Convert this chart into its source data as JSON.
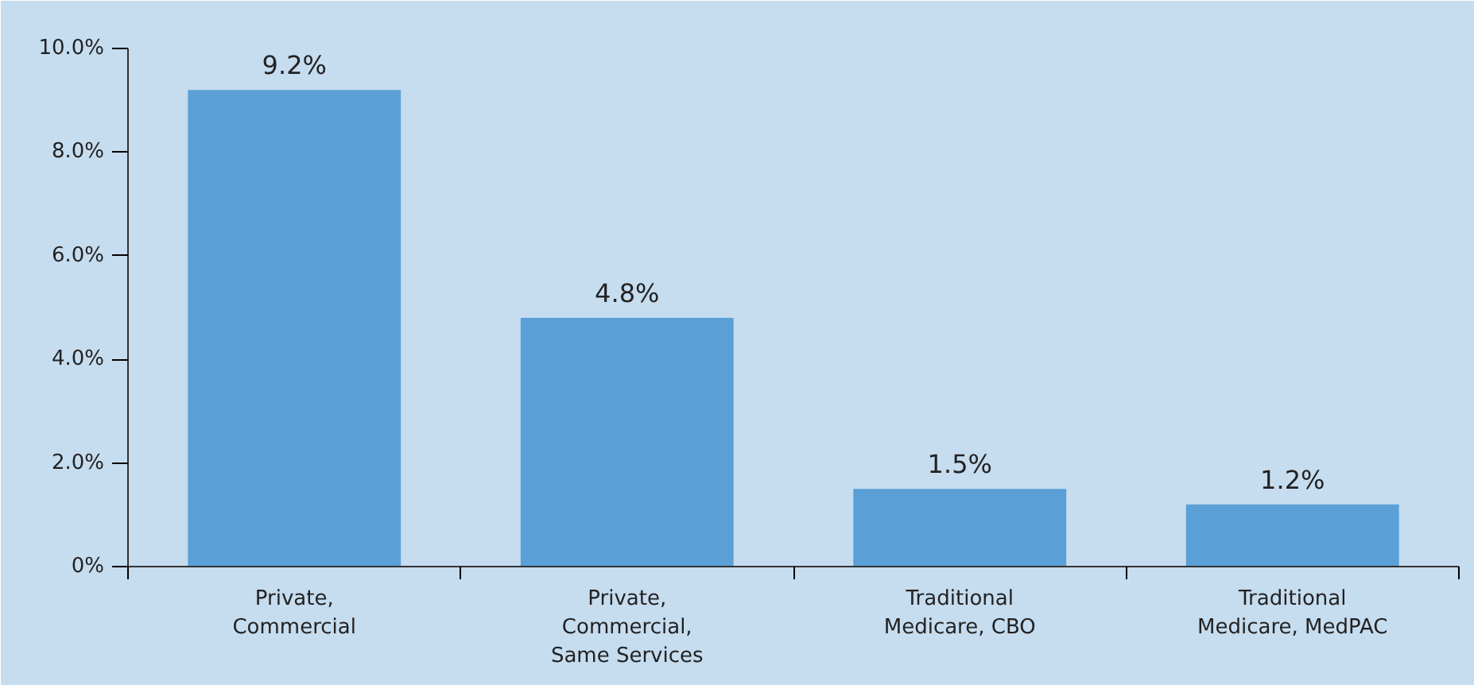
{
  "chart_data": {
    "type": "bar",
    "categories": [
      "Private,\nCommercial",
      "Private,\nCommercial,\nSame Services",
      "Traditional\nMedicare, CBO",
      "Traditional\nMedicare, MedPAC"
    ],
    "values": [
      9.2,
      4.8,
      1.5,
      1.2
    ],
    "value_labels": [
      "9.2%",
      "4.8%",
      "1.5%",
      "1.2%"
    ],
    "color": "#5aa0d6",
    "ylim": [
      0,
      10
    ],
    "yticks": [
      {
        "value": 0,
        "label": "0%"
      },
      {
        "value": 2,
        "label": "2.0%"
      },
      {
        "value": 4,
        "label": "4.0%"
      },
      {
        "value": 6,
        "label": "6.0%"
      },
      {
        "value": 8,
        "label": "8.0%"
      },
      {
        "value": 10,
        "label": "10.0%"
      }
    ],
    "grid": false
  }
}
